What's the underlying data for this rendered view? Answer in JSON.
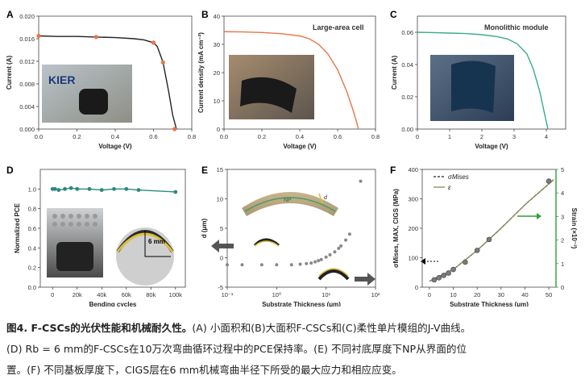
{
  "chart_data": [
    {
      "panel": "A",
      "type": "line",
      "title": "",
      "xlabel": "Voltage (V)",
      "ylabel": "Current (A)",
      "xlim": [
        0,
        0.8
      ],
      "ylim": [
        0,
        0.02
      ],
      "xticks": [
        "0.0",
        "0.2",
        "0.4",
        "0.6",
        "0.8"
      ],
      "yticks": [
        "0.000",
        "0.004",
        "0.008",
        "0.012",
        "0.016",
        "0.020"
      ],
      "color": "#222222",
      "marker_color": "#e8754a",
      "x": [
        0,
        0.1,
        0.2,
        0.3,
        0.4,
        0.5,
        0.55,
        0.6,
        0.62,
        0.65,
        0.68,
        0.7,
        0.72
      ],
      "y": [
        0.0165,
        0.0164,
        0.0164,
        0.0163,
        0.0162,
        0.016,
        0.0158,
        0.0153,
        0.0146,
        0.0118,
        0.0065,
        0.0025,
        0.0
      ],
      "markers": {
        "x": [
          0,
          0.3,
          0.6,
          0.65,
          0.71
        ],
        "y": [
          0.0165,
          0.0163,
          0.0153,
          0.0118,
          0.0
        ]
      },
      "photo_text": "KIER"
    },
    {
      "panel": "B",
      "type": "line",
      "title": "Large-area cell",
      "xlabel": "Voltage (V)",
      "ylabel": "Current density (mA cm⁻²)",
      "xlim": [
        0,
        0.8
      ],
      "ylim": [
        0,
        40
      ],
      "xticks": [
        "0.0",
        "0.2",
        "0.4",
        "0.6",
        "0.8"
      ],
      "yticks": [
        "0",
        "10",
        "20",
        "30",
        "40"
      ],
      "color": "#e8754a",
      "x": [
        0,
        0.1,
        0.2,
        0.3,
        0.4,
        0.45,
        0.5,
        0.55,
        0.6,
        0.65,
        0.68,
        0.7,
        0.71
      ],
      "y": [
        34.5,
        34.4,
        34.2,
        33.8,
        33.0,
        32.0,
        30.0,
        26.5,
        21.0,
        13.0,
        7.0,
        2.5,
        0
      ]
    },
    {
      "panel": "C",
      "type": "line",
      "title": "Monolithic module",
      "xlabel": "Voltage (V)",
      "ylabel": "Current (A)",
      "xlim": [
        0,
        4.6
      ],
      "ylim": [
        0,
        0.07
      ],
      "xticks": [
        "0",
        "1",
        "2",
        "3",
        "4"
      ],
      "yticks": [
        "0.00",
        "0.02",
        "0.04",
        "0.06"
      ],
      "color": "#3aaa8e",
      "x": [
        0,
        0.5,
        1,
        1.5,
        2,
        2.5,
        2.8,
        3.1,
        3.4,
        3.6,
        3.8,
        3.95,
        4.05
      ],
      "y": [
        0.06,
        0.0598,
        0.0595,
        0.0592,
        0.0585,
        0.0572,
        0.0558,
        0.0528,
        0.0465,
        0.037,
        0.023,
        0.009,
        0
      ]
    },
    {
      "panel": "D",
      "type": "line",
      "title": "",
      "xlabel": "Bending cycles",
      "ylabel": "Normalized PCE",
      "xlim": [
        -10000,
        108000
      ],
      "ylim": [
        0,
        1.2
      ],
      "xticks": [
        "0",
        "20k",
        "40k",
        "60k",
        "80k",
        "100k"
      ],
      "yticks": [
        "0.0",
        "0.2",
        "0.4",
        "0.6",
        "0.8",
        "1.0"
      ],
      "color": "#2a8a7e",
      "x": [
        0,
        2000,
        5000,
        10000,
        15000,
        20000,
        30000,
        40000,
        50000,
        60000,
        70000,
        100000
      ],
      "y": [
        1.0,
        1.0,
        0.99,
        1.0,
        1.01,
        1.0,
        1.0,
        0.99,
        1.0,
        1.0,
        0.99,
        0.97
      ],
      "annotation": "6 mm"
    },
    {
      "panel": "E",
      "type": "scatter",
      "title": "",
      "xlabel": "Substrate Thickness (μm)",
      "ylabel": "d (μm)",
      "xscale": "log",
      "xlim": [
        0.1,
        100
      ],
      "ylim": [
        -5,
        15
      ],
      "xticks": [
        "10⁻¹",
        "10⁰",
        "10¹",
        "10²"
      ],
      "yticks": [
        "-5",
        "0",
        "5",
        "10",
        "15"
      ],
      "color": "#888888",
      "x": [
        0.1,
        0.2,
        0.5,
        1,
        2,
        3,
        4,
        5,
        6,
        7,
        8,
        10,
        12,
        15,
        18,
        20,
        25,
        30,
        50
      ],
      "y": [
        -1.2,
        -1.2,
        -1.2,
        -1.2,
        -1.2,
        -1.1,
        -1.0,
        -0.9,
        -0.7,
        -0.5,
        -0.3,
        0.1,
        0.5,
        1.0,
        1.6,
        2.0,
        3.0,
        4.0,
        13.0
      ],
      "inset_label": "NP",
      "inset_symbol": "d"
    },
    {
      "panel": "F",
      "type": "line",
      "title": "",
      "xlabel": "Substrate Thickness (μm)",
      "ylabel": "σMises, MAX, CIGS (MPa)",
      "ylabel_right": "Strain (×10⁻³)",
      "xlim": [
        -3,
        53
      ],
      "ylim": [
        0,
        400
      ],
      "ylim_right": [
        0,
        5
      ],
      "xticks": [
        "0",
        "10",
        "20",
        "30",
        "40",
        "50"
      ],
      "yticks": [
        "0",
        "100",
        "200",
        "300",
        "400"
      ],
      "yticks_right": [
        "0",
        "1",
        "2",
        "3",
        "4",
        "5"
      ],
      "right_axis_color": "#2e9e3a",
      "series": [
        {
          "name": "σMises",
          "style": "dashed",
          "color": "#222222",
          "x": [
            0,
            10,
            20,
            30,
            40,
            52
          ],
          "y": [
            20,
            60,
            125,
            200,
            280,
            365
          ]
        },
        {
          "name": "ε",
          "style": "solid",
          "color": "#8b8455",
          "x": [
            0,
            10,
            20,
            30,
            40,
            52
          ],
          "y": [
            20,
            60,
            125,
            200,
            280,
            365
          ]
        }
      ],
      "points": {
        "x": [
          2,
          4,
          6,
          8,
          10,
          15,
          20,
          25,
          50
        ],
        "y": [
          25,
          32,
          40,
          48,
          60,
          85,
          125,
          162,
          360
        ]
      }
    }
  ],
  "caption": {
    "line1_bold": "图4. F-CSCs的光伏性能和机械耐久性。",
    "line1_rest": "(A) 小面积和(B)大面积F-CSCs和(C)柔性单片模组的J-V曲线。",
    "line2": "(D) Rb = 6 mm的F-CSCs在10万次弯曲循环过程中的PCE保持率。(E) 不同衬底厚度下NP从界面的位",
    "line3": "置。(F) 不同基板厚度下，CIGS层在6 mm机械弯曲半径下所受的最大应力和相应应变。"
  }
}
